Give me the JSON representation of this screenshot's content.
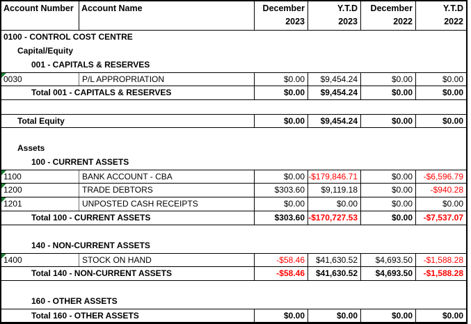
{
  "colors": {
    "negative_value": "#ff0000",
    "grid_border": "#000000",
    "flag_triangle": "#1e7b33"
  },
  "header": {
    "account_number_label": "Account Number",
    "account_name_label": "Account Name",
    "period_cols": [
      {
        "line1": "December",
        "line2": "2023"
      },
      {
        "line1": "Y.T.D",
        "line2": "2023"
      },
      {
        "line1": "December",
        "line2": "2022"
      },
      {
        "line1": "Y.T.D",
        "line2": "2022"
      }
    ]
  },
  "rows": [
    {
      "type": "section",
      "level": 0,
      "label": "0100 - CONTROL COST CENTRE"
    },
    {
      "type": "section",
      "level": 1,
      "label": "Capital/Equity"
    },
    {
      "type": "section",
      "level": 2,
      "label": "001 - CAPITALS & RESERVES"
    },
    {
      "type": "account",
      "number": "0030",
      "name": "P/L APPROPRIATION",
      "flag": true,
      "values": [
        "$0.00",
        "$9,454.24",
        "$0.00",
        "$0.00"
      ]
    },
    {
      "type": "total",
      "level": 2,
      "label": "Total 001 - CAPITALS & RESERVES",
      "values": [
        "$0.00",
        "$9,454.24",
        "$0.00",
        "$0.00"
      ]
    },
    {
      "type": "blank"
    },
    {
      "type": "total",
      "level": 1,
      "label": "Total Equity",
      "values": [
        "$0.00",
        "$9,454.24",
        "$0.00",
        "$0.00"
      ]
    },
    {
      "type": "blank"
    },
    {
      "type": "section",
      "level": 1,
      "label": "Assets"
    },
    {
      "type": "section",
      "level": 2,
      "label": "100 - CURRENT ASSETS"
    },
    {
      "type": "account",
      "number": "1100",
      "name": "BANK ACCOUNT - CBA",
      "flag": true,
      "values": [
        "$0.00",
        "-$179,846.71",
        "$0.00",
        "-$6,596.79"
      ]
    },
    {
      "type": "account",
      "number": "1200",
      "name": "TRADE DEBTORS",
      "flag": true,
      "values": [
        "$303.60",
        "$9,119.18",
        "$0.00",
        "-$940.28"
      ]
    },
    {
      "type": "account",
      "number": "1201",
      "name": "UNPOSTED CASH RECEIPTS",
      "flag": true,
      "values": [
        "$0.00",
        "$0.00",
        "$0.00",
        "$0.00"
      ]
    },
    {
      "type": "total",
      "level": 2,
      "label": "Total 100 - CURRENT ASSETS",
      "values": [
        "$303.60",
        "-$170,727.53",
        "$0.00",
        "-$7,537.07"
      ]
    },
    {
      "type": "blank"
    },
    {
      "type": "section",
      "level": 2,
      "label": "140 - NON-CURRENT ASSETS"
    },
    {
      "type": "account",
      "number": "1400",
      "name": "STOCK ON HAND",
      "flag": true,
      "values": [
        "-$58.46",
        "$41,630.52",
        "$4,693.50",
        "-$1,588.28"
      ]
    },
    {
      "type": "total",
      "level": 2,
      "label": "Total 140 - NON-CURRENT ASSETS",
      "values": [
        "-$58.46",
        "$41,630.52",
        "$4,693.50",
        "-$1,588.28"
      ]
    },
    {
      "type": "blank"
    },
    {
      "type": "section",
      "level": 2,
      "label": "160 - OTHER ASSETS"
    },
    {
      "type": "total",
      "level": 2,
      "label": "Total 160 - OTHER ASSETS",
      "values": [
        "$0.00",
        "$0.00",
        "$0.00",
        "$0.00"
      ]
    }
  ]
}
